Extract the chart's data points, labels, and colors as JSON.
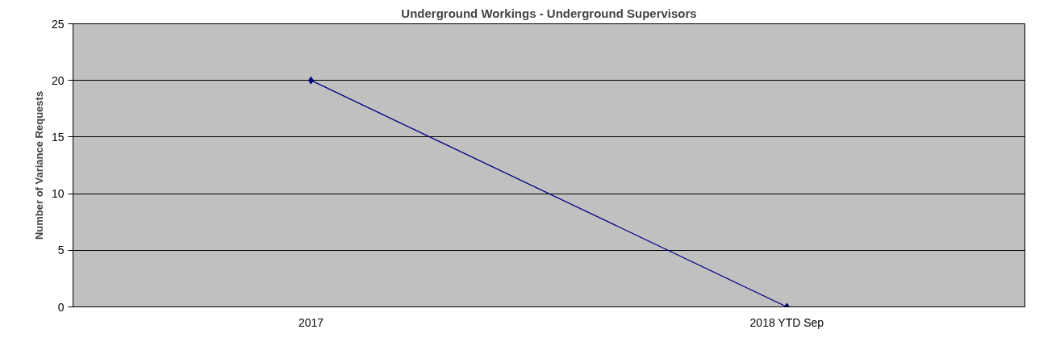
{
  "chart_data": {
    "type": "line",
    "title": "Underground Workings - Underground Supervisors",
    "ylabel": "Number of Variance Requests",
    "categories": [
      "2017",
      "2018 YTD Sep"
    ],
    "series": [
      {
        "color": "#000080",
        "values": [
          20,
          0
        ]
      }
    ],
    "ylim": [
      0,
      25
    ],
    "yticks": [
      0,
      5,
      10,
      15,
      20,
      25
    ],
    "grid": "y",
    "marker": "diamond",
    "line_style": "solid"
  }
}
